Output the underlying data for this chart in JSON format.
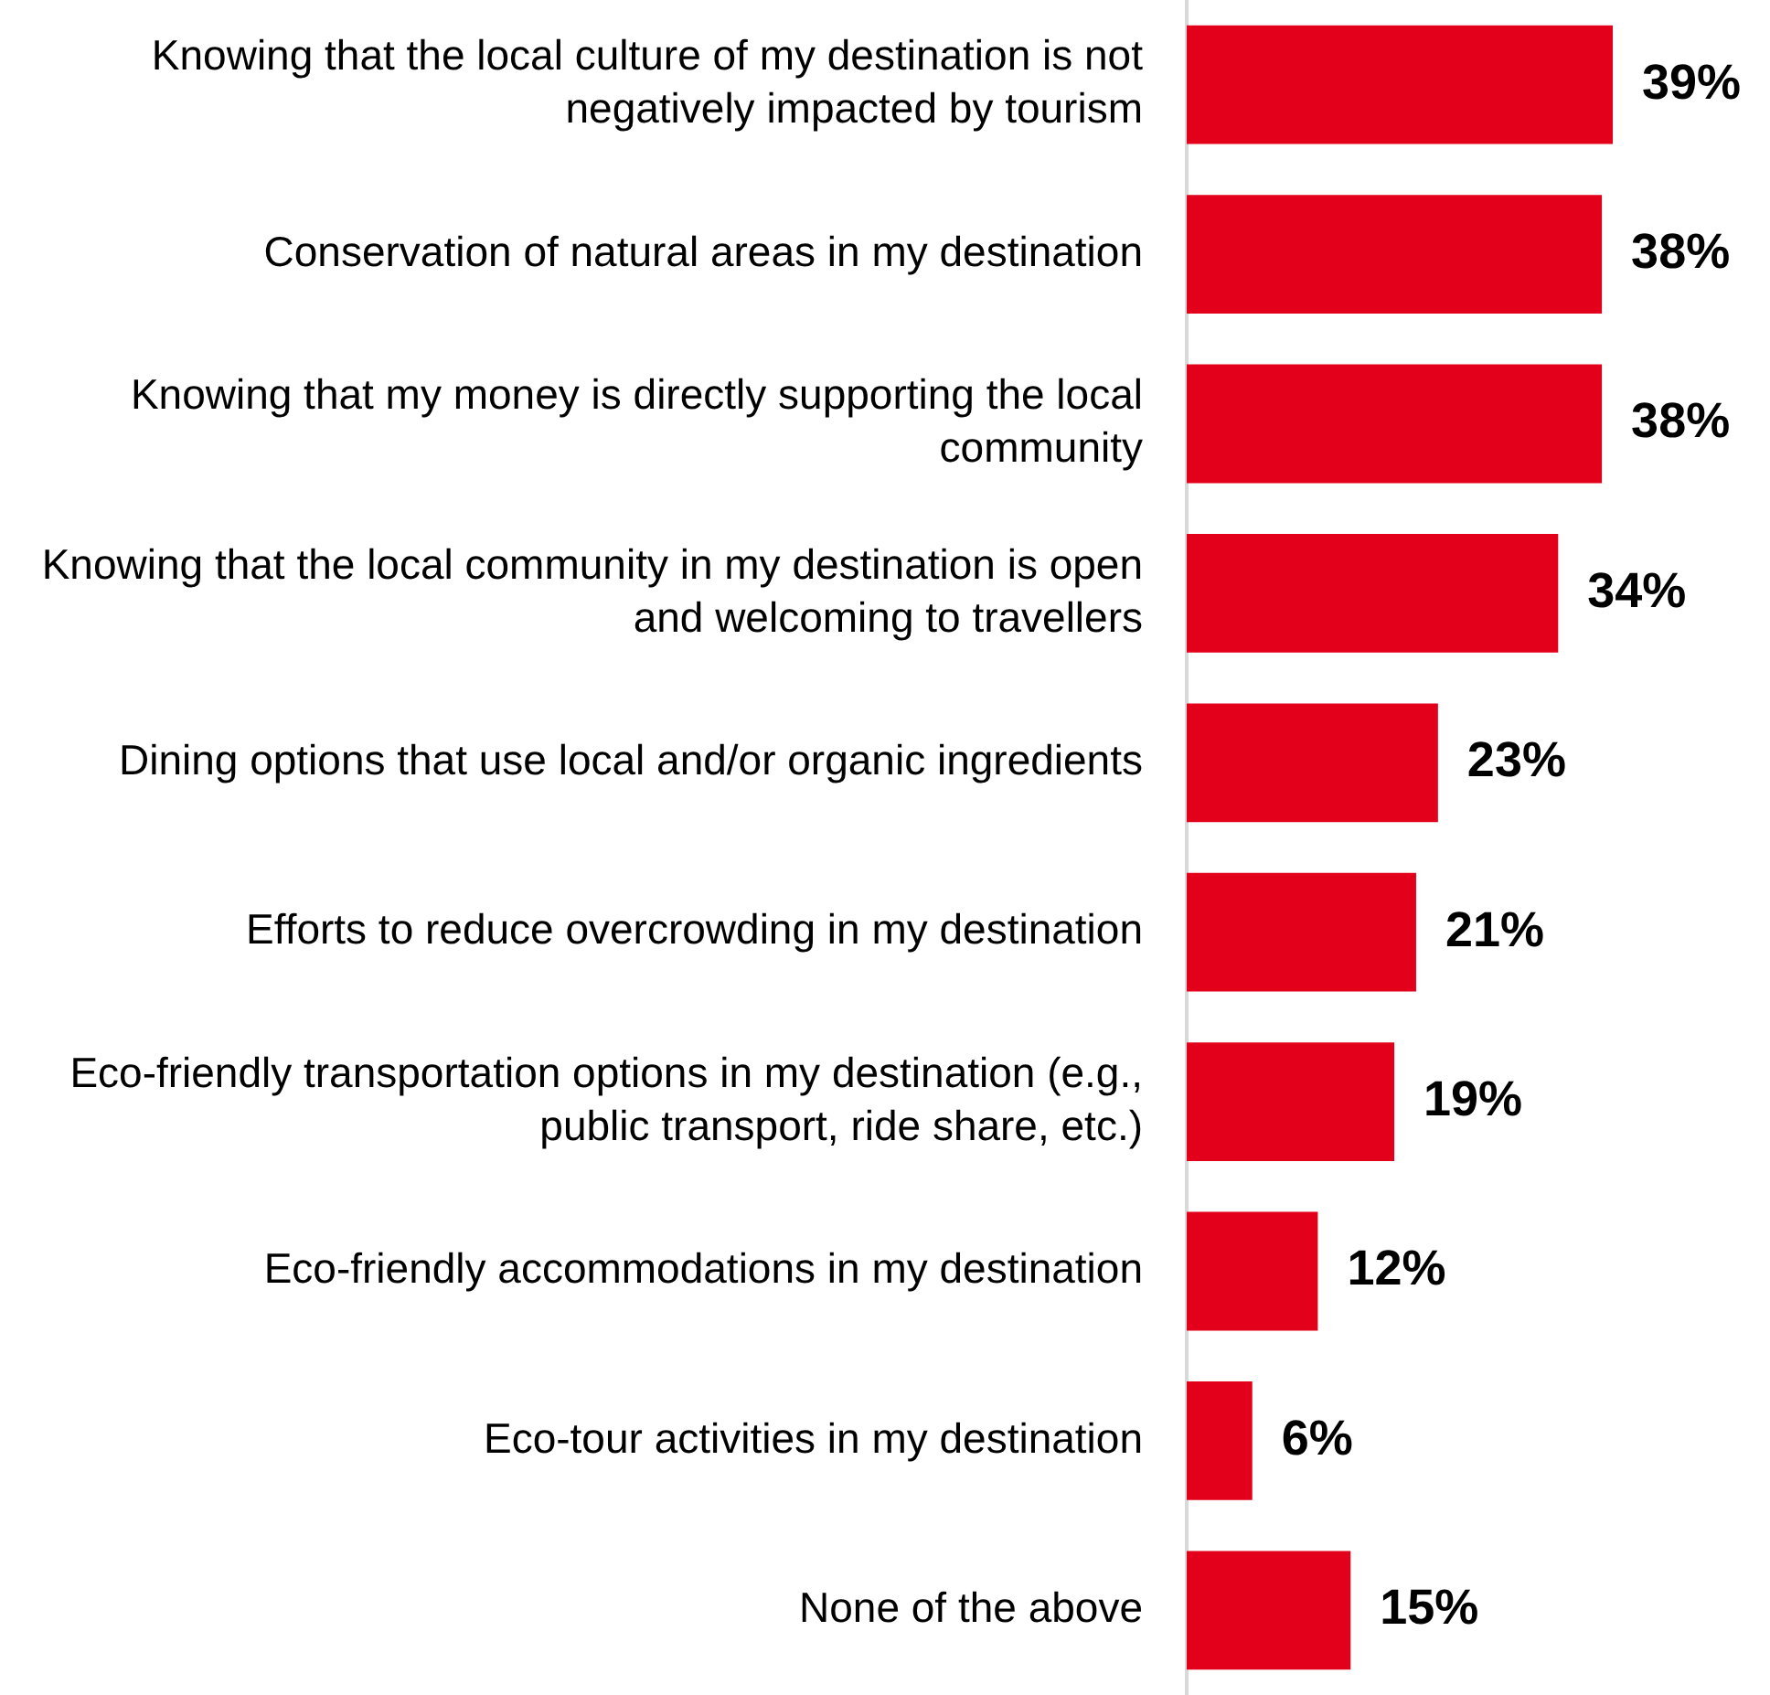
{
  "chart_data": {
    "type": "bar",
    "orientation": "horizontal",
    "categories": [
      "Knowing that the local culture of my destination is not negatively impacted by tourism",
      "Conservation of natural areas in my destination",
      "Knowing that my money is directly supporting the local community",
      "Knowing that the local community in my destination is open and welcoming to travellers",
      "Dining options that use local and/or organic ingredients",
      "Efforts to reduce overcrowding in my destination",
      "Eco-friendly transportation options in my destination (e.g., public transport, ride share, etc.)",
      "Eco-friendly accommodations in my destination",
      "Eco-tour activities in my destination",
      "None of the above"
    ],
    "values": [
      39,
      38,
      38,
      34,
      23,
      21,
      19,
      12,
      6,
      15
    ],
    "value_labels": [
      "39%",
      "38%",
      "38%",
      "34%",
      "23%",
      "21%",
      "19%",
      "12%",
      "6%",
      "15%"
    ],
    "color": "#e2001a",
    "legend": false
  }
}
